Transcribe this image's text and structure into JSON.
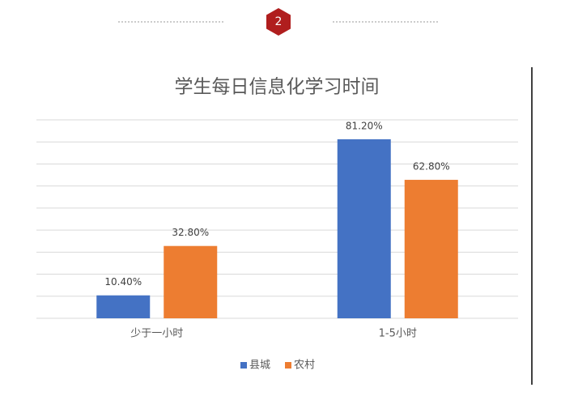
{
  "badge": "2",
  "chart_data": {
    "type": "bar",
    "title": "学生每日信息化学习时间",
    "categories": [
      "少于一小时",
      "1-5小时"
    ],
    "series": [
      {
        "name": "县城",
        "color": "#4472c4",
        "values": [
          10.4,
          81.2
        ],
        "value_labels": [
          "10.40%",
          "81.20%"
        ]
      },
      {
        "name": "农村",
        "color": "#ed7d31",
        "values": [
          32.8,
          62.8
        ],
        "value_labels": [
          "32.80%",
          "62.80%"
        ]
      }
    ],
    "ylim": [
      0,
      90
    ],
    "yticks": [
      0,
      10,
      20,
      30,
      40,
      50,
      60,
      70,
      80,
      90
    ],
    "grid": true,
    "legend": "bottom"
  }
}
